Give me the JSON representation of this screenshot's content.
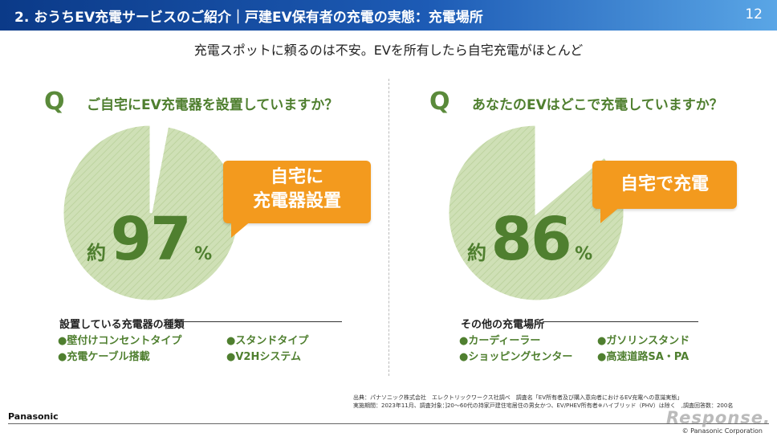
{
  "header": {
    "title": "2. おうちEV充電サービスのご紹介｜戸建EV保有者の充電の実態：充電場所",
    "page_number": "12"
  },
  "subtitle": "充電スポットに頼るのは不安。EVを所有したら自宅充電がほとんど",
  "left": {
    "q_mark": "Q",
    "question": "ご自宅にEV充電器を設置していますか？",
    "callout_line1": "自宅に",
    "callout_line2": "充電器設置",
    "value_prefix": "約",
    "value": "97",
    "value_unit": "%",
    "list_title": "設置している充電器の種類",
    "items": [
      "●壁付けコンセントタイプ",
      "●スタンドタイプ",
      "●充電ケーブル搭載",
      "●V2Hシステム"
    ]
  },
  "right": {
    "q_mark": "Q",
    "question": "あなたのEVはどこで充電していますか？",
    "callout": "自宅で充電",
    "value_prefix": "約",
    "value": "86",
    "value_unit": "%",
    "list_title": "その他の充電場所",
    "items": [
      "●カーディーラー",
      "●ガソリンスタンド",
      "●ショッピングセンター",
      "●高速道路SA・PA"
    ]
  },
  "chart_data": [
    {
      "type": "pie",
      "values": [
        97,
        3
      ],
      "colors": [
        "#c9dcb0",
        "#ffffff"
      ]
    },
    {
      "type": "pie",
      "values": [
        86,
        14
      ],
      "colors": [
        "#c9dcb0",
        "#ffffff"
      ]
    }
  ],
  "source": {
    "line1": "出典：パナソニック株式会社　エレクトリックワークス社調べ　調査名「EV所有者及び購入意向者におけるEV充電への意識実態」",
    "line2": "実施期間：2023年11月、調査対象：]20～60代の持家戸建住宅居住の男女かつ、EV/PHEV所有者※ハイブリッド（PHV）は除く　,調査回答数：200名"
  },
  "footer": {
    "brand": "Panasonic",
    "watermark": "Response.",
    "copyright": "© Panasonic Corporation"
  },
  "colors": {
    "header_start": "#0b3a88",
    "header_end": "#5aa6e6",
    "accent_green": "#4f7f2f",
    "callout_orange": "#f39a1e",
    "pie_fill": "#c9dcb0"
  }
}
